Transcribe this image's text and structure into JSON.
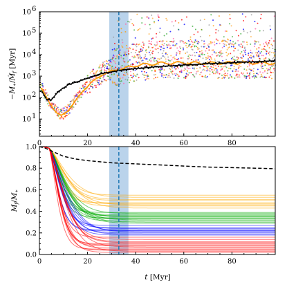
{
  "chart_data": [
    {
      "type": "scatter",
      "title": "",
      "xlabel": "",
      "ylabel": "−M_∗/Ṁ_f [Myr]",
      "ylabel_parts": {
        "minus": "−",
        "m": "M",
        "sub_star": "∗",
        "slash": "/",
        "mdot": "Ṁ",
        "sub_f": "f",
        "unit": "[Myr]"
      },
      "xlim": [
        0,
        98
      ],
      "ylim_log10": [
        0.2,
        6
      ],
      "y_scale": "log",
      "x_ticks": [
        0,
        20,
        40,
        60,
        80
      ],
      "x_tick_labels": [
        "0",
        "20",
        "40",
        "60",
        "80"
      ],
      "y_ticks_log10": [
        1,
        2,
        3,
        4,
        5,
        6
      ],
      "y_tick_labels": [
        {
          "base": "10",
          "exp": "1"
        },
        {
          "base": "10",
          "exp": "2"
        },
        {
          "base": "10",
          "exp": "3"
        },
        {
          "base": "10",
          "exp": "4"
        },
        {
          "base": "10",
          "exp": "5"
        },
        {
          "base": "10",
          "exp": "6"
        }
      ],
      "highlight_band": {
        "x_from": 29,
        "x_to": 37,
        "color": "#a9c8e6"
      },
      "vertical_line": {
        "x": 33,
        "color": "#1f77b4",
        "style": "dashed"
      },
      "scatter_colors": [
        "#ff0000",
        "#ff9900",
        "#33aa33",
        "#0000ff",
        "#ff66aa",
        "#ffaa33",
        "#999999"
      ],
      "black_curve": {
        "x": [
          1,
          3,
          5,
          8,
          12,
          16,
          20,
          25,
          30,
          35,
          40,
          50,
          60,
          70,
          80,
          90,
          98
        ],
        "log10_y": [
          2.3,
          1.9,
          1.9,
          2.3,
          2.6,
          2.75,
          2.9,
          3.1,
          3.2,
          3.3,
          3.35,
          3.45,
          3.52,
          3.58,
          3.63,
          3.68,
          3.72
        ],
        "color": "#000000"
      },
      "orange_trend": {
        "x": [
          1,
          4,
          7,
          9,
          12,
          15,
          18,
          22,
          26,
          30,
          35,
          40,
          50,
          60,
          70,
          80,
          90,
          98
        ],
        "log10_y": [
          2.4,
          1.8,
          1.3,
          1.15,
          1.4,
          1.85,
          2.3,
          2.75,
          3.05,
          3.25,
          3.35,
          3.5,
          3.6,
          3.62,
          3.6,
          3.62,
          3.62,
          3.6
        ],
        "color": "#ff9900"
      }
    },
    {
      "type": "line",
      "title": "",
      "xlabel": "t [Myr]",
      "xlabel_parts": {
        "var": "t",
        "unit": "[Myr]"
      },
      "ylabel": "M_f/M_∗",
      "ylabel_parts": {
        "m1": "M",
        "sub_f": "f",
        "slash": "/",
        "m2": "M",
        "sub_star": "∗"
      },
      "xlim": [
        0,
        98
      ],
      "ylim": [
        0,
        1
      ],
      "x_ticks": [
        0,
        20,
        40,
        60,
        80
      ],
      "x_tick_labels": [
        "0",
        "20",
        "40",
        "60",
        "80"
      ],
      "y_ticks": [
        0,
        0.2,
        0.4,
        0.6,
        0.8,
        1.0
      ],
      "y_tick_labels": [
        "0.0",
        "0.2",
        "0.4",
        "0.6",
        "0.8",
        "1.0"
      ],
      "highlight_band": {
        "x_from": 29,
        "x_to": 37,
        "color": "#a9c8e6"
      },
      "vertical_line": {
        "x": 33,
        "color": "#1f77b4",
        "style": "dashed"
      },
      "series": [
        {
          "color": "#ffaa00",
          "x_onset": 4,
          "final_values": [
            0.55,
            0.53,
            0.51,
            0.5,
            0.48,
            0.47,
            0.46,
            0.45,
            0.43
          ]
        },
        {
          "color": "#00aa00",
          "x_onset": 4,
          "final_values": [
            0.39,
            0.38,
            0.37,
            0.36,
            0.35,
            0.35,
            0.34,
            0.33,
            0.33,
            0.32,
            0.31,
            0.3,
            0.29
          ]
        },
        {
          "color": "#0000ff",
          "x_onset": 4,
          "final_values": [
            0.27,
            0.25,
            0.24,
            0.23,
            0.22,
            0.22,
            0.21,
            0.2,
            0.19,
            0.18
          ]
        },
        {
          "color": "#ff0000",
          "x_onset": 4,
          "final_values": [
            0.16,
            0.14,
            0.12,
            0.11,
            0.1,
            0.09,
            0.08,
            0.07,
            0.06,
            0.05,
            0.04,
            0.03,
            0.02
          ]
        }
      ],
      "reference_curve": {
        "x": [
          0,
          2,
          4,
          6,
          8,
          10,
          15,
          20,
          30,
          40,
          50,
          60,
          70,
          80,
          90,
          98
        ],
        "y": [
          1.0,
          0.99,
          0.97,
          0.95,
          0.93,
          0.91,
          0.885,
          0.87,
          0.85,
          0.84,
          0.83,
          0.82,
          0.81,
          0.805,
          0.8,
          0.795
        ],
        "color": "#000000",
        "style": "dashed"
      }
    }
  ]
}
